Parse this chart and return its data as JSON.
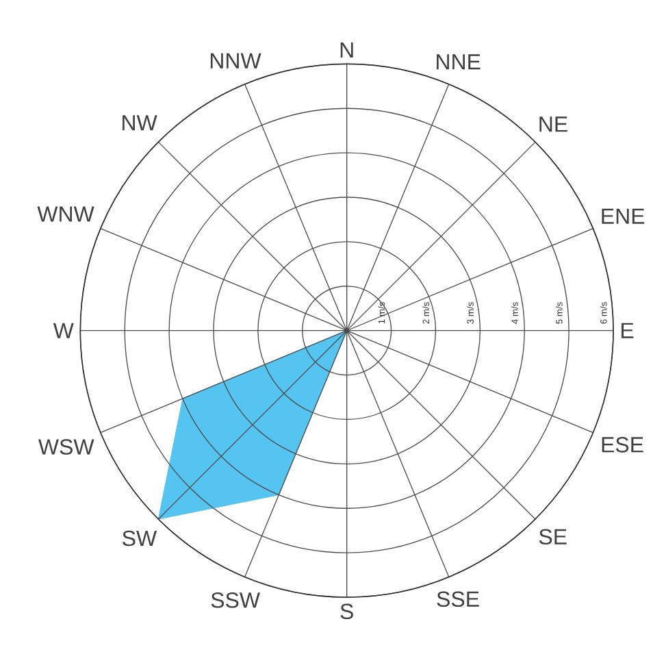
{
  "chart_data": {
    "type": "radar",
    "categories": [
      "N",
      "NNE",
      "NE",
      "ENE",
      "E",
      "ESE",
      "SE",
      "SSE",
      "S",
      "SSW",
      "SW",
      "WSW",
      "W",
      "WNW",
      "NW",
      "NNW"
    ],
    "series": [
      {
        "color": "#55c4f0",
        "values": [
          0,
          0,
          0,
          0,
          0,
          0,
          0,
          0,
          0,
          4,
          6,
          4,
          0,
          0,
          0,
          0
        ]
      }
    ],
    "ylim": [
      0,
      6
    ],
    "yticks": [
      {
        "value": 1,
        "label": "1 m/s"
      },
      {
        "value": 2,
        "label": "2 m/s"
      },
      {
        "value": 3,
        "label": "3 m/s"
      },
      {
        "value": 4,
        "label": "4 m/s"
      },
      {
        "value": 5,
        "label": "5 m/s"
      },
      {
        "value": 6,
        "label": "6 m/s"
      }
    ],
    "grid": true
  }
}
